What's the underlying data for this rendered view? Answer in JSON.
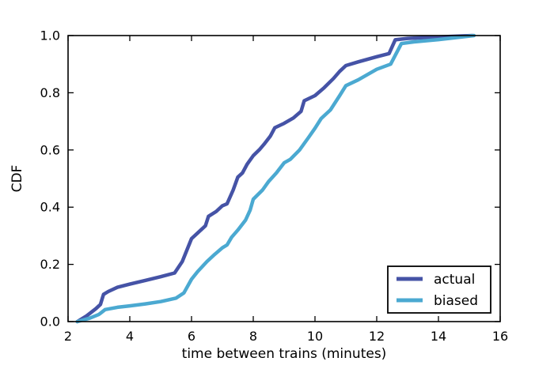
{
  "figure": {
    "background": "#ffffff",
    "text_color": "#000000"
  },
  "chart_data": {
    "type": "line",
    "title": "",
    "xlabel": "time between trains (minutes)",
    "ylabel": "CDF",
    "xlim": [
      2,
      16
    ],
    "ylim": [
      0.0,
      1.0
    ],
    "xticks": [
      2,
      4,
      6,
      8,
      10,
      12,
      14,
      16
    ],
    "xtick_labels": [
      "2",
      "4",
      "6",
      "8",
      "10",
      "12",
      "14",
      "16"
    ],
    "yticks": [
      0.0,
      0.2,
      0.4,
      0.6,
      0.8,
      1.0
    ],
    "ytick_labels": [
      "0.0",
      "0.2",
      "0.4",
      "0.6",
      "0.8",
      "1.0"
    ],
    "grid": false,
    "legend": {
      "position": "lower right",
      "framed": true
    },
    "series": [
      {
        "name": "actual",
        "color": "#4553A6",
        "linewidth": 4.5,
        "points": [
          [
            2.3,
            0.0
          ],
          [
            2.6,
            0.02
          ],
          [
            2.9,
            0.045
          ],
          [
            3.05,
            0.06
          ],
          [
            3.15,
            0.095
          ],
          [
            3.3,
            0.105
          ],
          [
            3.6,
            0.12
          ],
          [
            4.0,
            0.131
          ],
          [
            4.5,
            0.144
          ],
          [
            5.0,
            0.157
          ],
          [
            5.45,
            0.17
          ],
          [
            5.7,
            0.21
          ],
          [
            6.0,
            0.29
          ],
          [
            6.2,
            0.31
          ],
          [
            6.45,
            0.335
          ],
          [
            6.55,
            0.368
          ],
          [
            6.8,
            0.385
          ],
          [
            7.0,
            0.405
          ],
          [
            7.15,
            0.412
          ],
          [
            7.35,
            0.46
          ],
          [
            7.5,
            0.505
          ],
          [
            7.65,
            0.52
          ],
          [
            7.8,
            0.55
          ],
          [
            8.0,
            0.58
          ],
          [
            8.2,
            0.601
          ],
          [
            8.35,
            0.62
          ],
          [
            8.55,
            0.648
          ],
          [
            8.7,
            0.678
          ],
          [
            9.0,
            0.693
          ],
          [
            9.3,
            0.712
          ],
          [
            9.55,
            0.735
          ],
          [
            9.65,
            0.772
          ],
          [
            10.0,
            0.79
          ],
          [
            10.3,
            0.818
          ],
          [
            10.6,
            0.85
          ],
          [
            10.8,
            0.875
          ],
          [
            11.0,
            0.895
          ],
          [
            11.4,
            0.908
          ],
          [
            12.0,
            0.926
          ],
          [
            12.4,
            0.937
          ],
          [
            12.6,
            0.985
          ],
          [
            13.0,
            0.99
          ],
          [
            14.0,
            0.995
          ],
          [
            15.1,
            1.0
          ]
        ]
      },
      {
        "name": "biased",
        "color": "#4BA9D1",
        "linewidth": 4.5,
        "points": [
          [
            2.3,
            0.0
          ],
          [
            2.7,
            0.012
          ],
          [
            3.0,
            0.025
          ],
          [
            3.2,
            0.042
          ],
          [
            3.6,
            0.05
          ],
          [
            4.0,
            0.055
          ],
          [
            4.5,
            0.062
          ],
          [
            5.0,
            0.07
          ],
          [
            5.5,
            0.082
          ],
          [
            5.75,
            0.1
          ],
          [
            6.0,
            0.148
          ],
          [
            6.2,
            0.175
          ],
          [
            6.5,
            0.21
          ],
          [
            6.75,
            0.235
          ],
          [
            7.0,
            0.258
          ],
          [
            7.15,
            0.268
          ],
          [
            7.3,
            0.295
          ],
          [
            7.5,
            0.32
          ],
          [
            7.75,
            0.355
          ],
          [
            7.9,
            0.39
          ],
          [
            8.0,
            0.428
          ],
          [
            8.3,
            0.46
          ],
          [
            8.5,
            0.49
          ],
          [
            8.75,
            0.52
          ],
          [
            9.0,
            0.555
          ],
          [
            9.2,
            0.567
          ],
          [
            9.5,
            0.6
          ],
          [
            9.8,
            0.645
          ],
          [
            10.0,
            0.676
          ],
          [
            10.2,
            0.71
          ],
          [
            10.5,
            0.74
          ],
          [
            10.8,
            0.79
          ],
          [
            11.0,
            0.825
          ],
          [
            11.4,
            0.845
          ],
          [
            12.0,
            0.882
          ],
          [
            12.45,
            0.9
          ],
          [
            12.8,
            0.972
          ],
          [
            13.2,
            0.978
          ],
          [
            14.0,
            0.986
          ],
          [
            15.15,
            1.0
          ]
        ]
      }
    ]
  }
}
